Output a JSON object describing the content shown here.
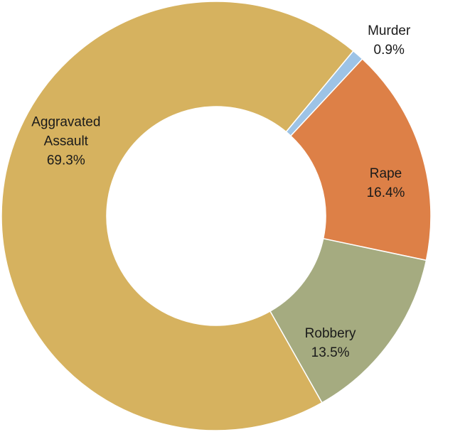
{
  "chart_data": {
    "type": "pie",
    "variant": "donut",
    "title": "",
    "legend": "none",
    "slices": [
      {
        "name": "Murder",
        "value": 0.9,
        "label": "0.9%",
        "color": "#9dc3e6"
      },
      {
        "name": "Rape",
        "value": 16.4,
        "label": "16.4%",
        "color": "#dd8047"
      },
      {
        "name": "Robbery",
        "value": 13.5,
        "label": "13.5%",
        "color": "#a5ab80"
      },
      {
        "name": "Aggravated Assault",
        "value": 69.3,
        "label": "69.3%",
        "color": "#d6b25f"
      }
    ]
  }
}
